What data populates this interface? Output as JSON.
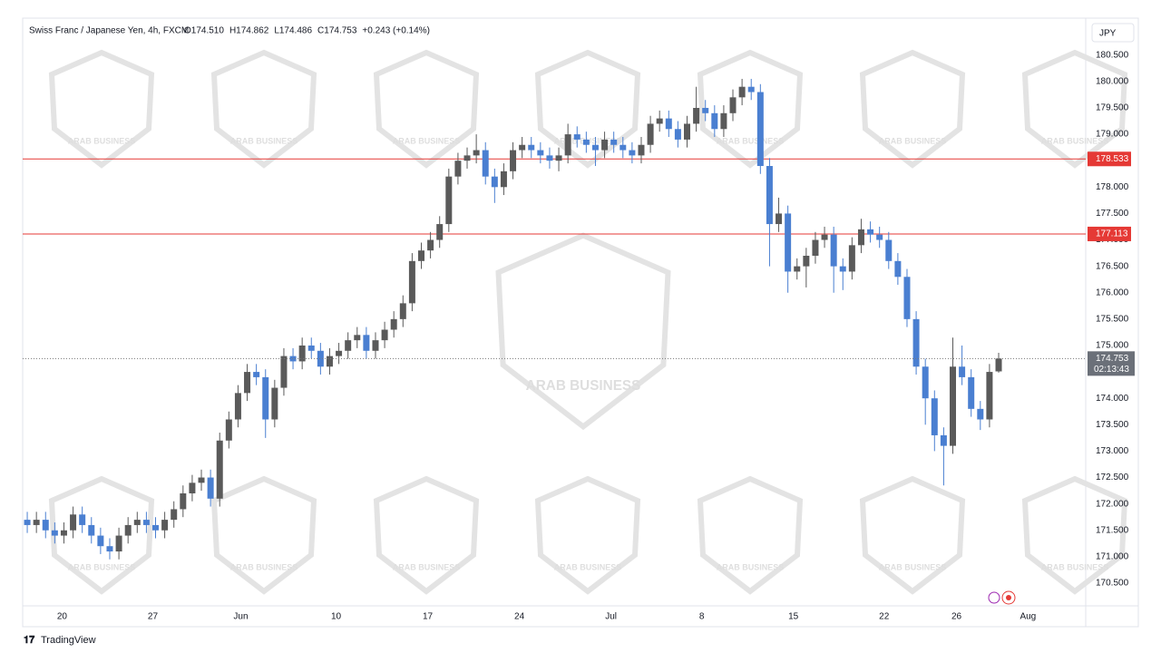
{
  "chart_data": {
    "type": "candlestick",
    "title": "Swiss Franc / Japanese Yen, 4h, FXCM",
    "legend_values": [
      "O174.510",
      "H174.862",
      "L174.486",
      "C174.753",
      "+0.243 (+0.14%)"
    ],
    "currency": "JPY",
    "watermark": "ARAB BUSINESS",
    "footer": "TradingView",
    "up_color": "#5a5a5a",
    "down_color": "#4a7fd1",
    "ylim": [
      170.07,
      181.2
    ],
    "xlim": [
      -0.5,
      115.5
    ],
    "yticks": [
      {
        "value": 170.5,
        "label": "170.500"
      },
      {
        "value": 171,
        "label": "171.000"
      },
      {
        "value": 171.5,
        "label": "171.500"
      },
      {
        "value": 172,
        "label": "172.000"
      },
      {
        "value": 172.5,
        "label": "172.500"
      },
      {
        "value": 173,
        "label": "173.000"
      },
      {
        "value": 173.5,
        "label": "173.500"
      },
      {
        "value": 174,
        "label": "174.000"
      },
      {
        "value": 174.5,
        "label": "174.500"
      },
      {
        "value": 175,
        "label": "175.000"
      },
      {
        "value": 175.5,
        "label": "175.500"
      },
      {
        "value": 176,
        "label": "176.000"
      },
      {
        "value": 176.5,
        "label": "176.500"
      },
      {
        "value": 177,
        "label": "177.000"
      },
      {
        "value": 177.5,
        "label": "177.500"
      },
      {
        "value": 178,
        "label": "178.000"
      },
      {
        "value": 178.5,
        "label": "178.500"
      },
      {
        "value": 179,
        "label": "179.000"
      },
      {
        "value": 179.5,
        "label": "179.500"
      },
      {
        "value": 180,
        "label": "180.000"
      },
      {
        "value": 180.5,
        "label": "180.500"
      }
    ],
    "xticks": [
      {
        "value": 3.8,
        "label": "20"
      },
      {
        "value": 13.7,
        "label": "27"
      },
      {
        "value": 23.3,
        "label": "Jun"
      },
      {
        "value": 33.7,
        "label": "10"
      },
      {
        "value": 43.7,
        "label": "17"
      },
      {
        "value": 53.7,
        "label": "24"
      },
      {
        "value": 63.7,
        "label": "Jul"
      },
      {
        "value": 73.6,
        "label": "8"
      },
      {
        "value": 83.6,
        "label": "15"
      },
      {
        "value": 93.5,
        "label": "22"
      },
      {
        "value": 101.4,
        "label": "26"
      },
      {
        "value": 109.2,
        "label": "Aug"
      }
    ],
    "hlines": [
      {
        "value": 178.533,
        "label": "178.533",
        "color": "#e53935"
      },
      {
        "value": 177.113,
        "label": "177.113",
        "color": "#e53935"
      }
    ],
    "last_price": {
      "value": 174.753,
      "label": "174.753",
      "countdown": "02:13:43",
      "color": "#6b7079"
    },
    "ohlc": [
      [
        171.7,
        171.85,
        171.45,
        171.6
      ],
      [
        171.6,
        171.85,
        171.45,
        171.7
      ],
      [
        171.7,
        171.85,
        171.35,
        171.5
      ],
      [
        171.5,
        171.65,
        171.25,
        171.4
      ],
      [
        171.4,
        171.65,
        171.25,
        171.5
      ],
      [
        171.5,
        171.95,
        171.35,
        171.8
      ],
      [
        171.8,
        171.95,
        171.45,
        171.6
      ],
      [
        171.6,
        171.75,
        171.25,
        171.4
      ],
      [
        171.4,
        171.55,
        171.05,
        171.2
      ],
      [
        171.2,
        171.35,
        170.95,
        171.1
      ],
      [
        171.1,
        171.55,
        170.95,
        171.4
      ],
      [
        171.4,
        171.75,
        171.25,
        171.6
      ],
      [
        171.6,
        171.85,
        171.45,
        171.7
      ],
      [
        171.7,
        171.85,
        171.45,
        171.6
      ],
      [
        171.6,
        171.75,
        171.35,
        171.5
      ],
      [
        171.5,
        171.85,
        171.35,
        171.7
      ],
      [
        171.7,
        172.05,
        171.55,
        171.9
      ],
      [
        171.9,
        172.35,
        171.75,
        172.2
      ],
      [
        172.2,
        172.55,
        172.05,
        172.4
      ],
      [
        172.4,
        172.65,
        172.25,
        172.5
      ],
      [
        172.5,
        172.65,
        171.95,
        172.1
      ],
      [
        172.1,
        173.35,
        171.95,
        173.2
      ],
      [
        173.2,
        173.75,
        173.05,
        173.6
      ],
      [
        173.6,
        174.25,
        173.45,
        174.1
      ],
      [
        174.1,
        174.65,
        173.95,
        174.5
      ],
      [
        174.5,
        174.65,
        174.25,
        174.4
      ],
      [
        174.4,
        174.55,
        173.25,
        173.6
      ],
      [
        173.6,
        174.35,
        173.45,
        174.2
      ],
      [
        174.2,
        174.95,
        174.05,
        174.8
      ],
      [
        174.8,
        174.95,
        174.55,
        174.7
      ],
      [
        174.7,
        175.15,
        174.55,
        175.0
      ],
      [
        175.0,
        175.15,
        174.75,
        174.9
      ],
      [
        174.9,
        175.05,
        174.45,
        174.6
      ],
      [
        174.6,
        174.95,
        174.45,
        174.8
      ],
      [
        174.8,
        175.05,
        174.65,
        174.9
      ],
      [
        174.9,
        175.25,
        174.75,
        175.1
      ],
      [
        175.1,
        175.35,
        174.95,
        175.2
      ],
      [
        175.2,
        175.35,
        174.75,
        174.9
      ],
      [
        174.9,
        175.25,
        174.75,
        175.1
      ],
      [
        175.1,
        175.45,
        174.95,
        175.3
      ],
      [
        175.3,
        175.65,
        175.15,
        175.5
      ],
      [
        175.5,
        175.95,
        175.35,
        175.8
      ],
      [
        175.8,
        176.75,
        175.65,
        176.6
      ],
      [
        176.6,
        176.95,
        176.45,
        176.8
      ],
      [
        176.8,
        177.15,
        176.65,
        177.0
      ],
      [
        177.0,
        177.45,
        176.85,
        177.3
      ],
      [
        177.3,
        178.35,
        177.15,
        178.2
      ],
      [
        178.2,
        178.65,
        178.05,
        178.5
      ],
      [
        178.5,
        178.75,
        178.35,
        178.6
      ],
      [
        178.6,
        179.0,
        178.45,
        178.7
      ],
      [
        178.7,
        178.85,
        178.05,
        178.2
      ],
      [
        178.2,
        178.35,
        177.7,
        178.0
      ],
      [
        178.0,
        178.45,
        177.85,
        178.3
      ],
      [
        178.3,
        178.85,
        178.15,
        178.7
      ],
      [
        178.7,
        178.95,
        178.55,
        178.8
      ],
      [
        178.8,
        178.95,
        178.55,
        178.7
      ],
      [
        178.7,
        178.85,
        178.45,
        178.6
      ],
      [
        178.6,
        178.75,
        178.35,
        178.5
      ],
      [
        178.5,
        178.75,
        178.3,
        178.6
      ],
      [
        178.6,
        179.2,
        178.45,
        179.0
      ],
      [
        179.0,
        179.15,
        178.75,
        178.9
      ],
      [
        178.9,
        179.05,
        178.65,
        178.8
      ],
      [
        178.8,
        178.95,
        178.4,
        178.7
      ],
      [
        178.7,
        179.05,
        178.55,
        178.9
      ],
      [
        178.9,
        179.05,
        178.65,
        178.8
      ],
      [
        178.8,
        178.95,
        178.55,
        178.7
      ],
      [
        178.7,
        178.85,
        178.45,
        178.6
      ],
      [
        178.6,
        178.95,
        178.45,
        178.8
      ],
      [
        178.8,
        179.35,
        178.65,
        179.2
      ],
      [
        179.2,
        179.45,
        179.05,
        179.3
      ],
      [
        179.3,
        179.45,
        178.95,
        179.1
      ],
      [
        179.1,
        179.25,
        178.75,
        178.9
      ],
      [
        178.9,
        179.35,
        178.75,
        179.2
      ],
      [
        179.2,
        179.9,
        179.05,
        179.5
      ],
      [
        179.5,
        179.65,
        179.25,
        179.4
      ],
      [
        179.4,
        179.55,
        178.95,
        179.1
      ],
      [
        179.1,
        179.55,
        178.95,
        179.4
      ],
      [
        179.4,
        179.85,
        179.25,
        179.7
      ],
      [
        179.7,
        180.05,
        179.55,
        179.9
      ],
      [
        179.9,
        180.05,
        179.65,
        179.8
      ],
      [
        179.8,
        179.95,
        178.25,
        178.4
      ],
      [
        178.4,
        178.55,
        176.5,
        177.3
      ],
      [
        177.3,
        177.8,
        177.15,
        177.5
      ],
      [
        177.5,
        177.65,
        176.0,
        176.4
      ],
      [
        176.4,
        176.65,
        176.25,
        176.5
      ],
      [
        176.5,
        176.85,
        176.1,
        176.7
      ],
      [
        176.7,
        177.15,
        176.55,
        177.0
      ],
      [
        177.0,
        177.25,
        176.85,
        177.1
      ],
      [
        177.1,
        177.25,
        176.0,
        176.5
      ],
      [
        176.5,
        176.65,
        176.05,
        176.4
      ],
      [
        176.4,
        177.05,
        176.25,
        176.9
      ],
      [
        176.9,
        177.4,
        176.75,
        177.2
      ],
      [
        177.2,
        177.35,
        176.95,
        177.1
      ],
      [
        177.1,
        177.25,
        176.85,
        177.0
      ],
      [
        177.0,
        177.15,
        176.45,
        176.6
      ],
      [
        176.6,
        176.75,
        176.15,
        176.3
      ],
      [
        176.3,
        176.45,
        175.35,
        175.5
      ],
      [
        175.5,
        175.65,
        174.45,
        174.6
      ],
      [
        174.6,
        174.75,
        173.5,
        174.0
      ],
      [
        174.0,
        174.15,
        173.0,
        173.3
      ],
      [
        173.3,
        173.45,
        172.35,
        173.1
      ],
      [
        173.1,
        175.15,
        172.95,
        174.6
      ],
      [
        174.6,
        175.0,
        174.25,
        174.4
      ],
      [
        174.4,
        174.55,
        173.65,
        173.8
      ],
      [
        173.8,
        173.95,
        173.4,
        173.6
      ],
      [
        173.6,
        174.65,
        173.45,
        174.5
      ],
      [
        174.51,
        174.862,
        174.486,
        174.753
      ]
    ]
  }
}
